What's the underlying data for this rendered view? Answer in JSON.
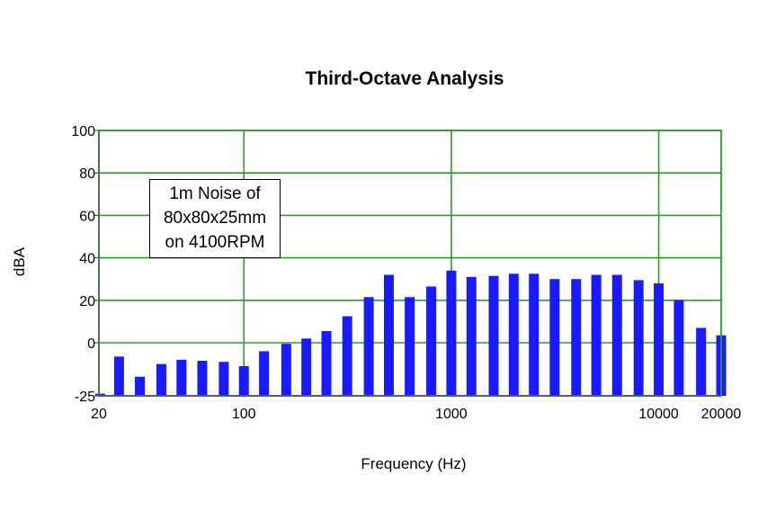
{
  "chart_data": {
    "type": "bar",
    "title": "Third-Octave Analysis",
    "xlabel": "Frequency (Hz)",
    "ylabel": "dBA",
    "x_scale": "log",
    "xlim": [
      20,
      20000
    ],
    "ylim": [
      -25,
      100
    ],
    "yticks": [
      100,
      80,
      60,
      40,
      20,
      0,
      -25
    ],
    "xticks": [
      "20",
      "100",
      "1000",
      "10000",
      "20000"
    ],
    "grid": true,
    "bar_color": "#1a1aff",
    "grid_color": "#2e9a2e",
    "categories": [
      20,
      25,
      31.5,
      40,
      50,
      63,
      80,
      100,
      125,
      160,
      200,
      250,
      315,
      400,
      500,
      630,
      800,
      1000,
      1250,
      1600,
      2000,
      2500,
      3150,
      4000,
      5000,
      6300,
      8000,
      10000,
      12500,
      16000,
      20000
    ],
    "values": [
      -24,
      -6.5,
      -16,
      -10,
      -8,
      -8.5,
      -9,
      -11,
      -4,
      -0.5,
      2,
      5.5,
      12.5,
      21.5,
      32,
      21.5,
      26.5,
      34,
      31,
      31.5,
      32.5,
      32.5,
      30,
      30,
      32,
      32,
      29.5,
      28,
      20,
      7,
      3.5
    ],
    "annotation": [
      "1m Noise of",
      "80x80x25mm",
      "on 4100RPM"
    ]
  }
}
